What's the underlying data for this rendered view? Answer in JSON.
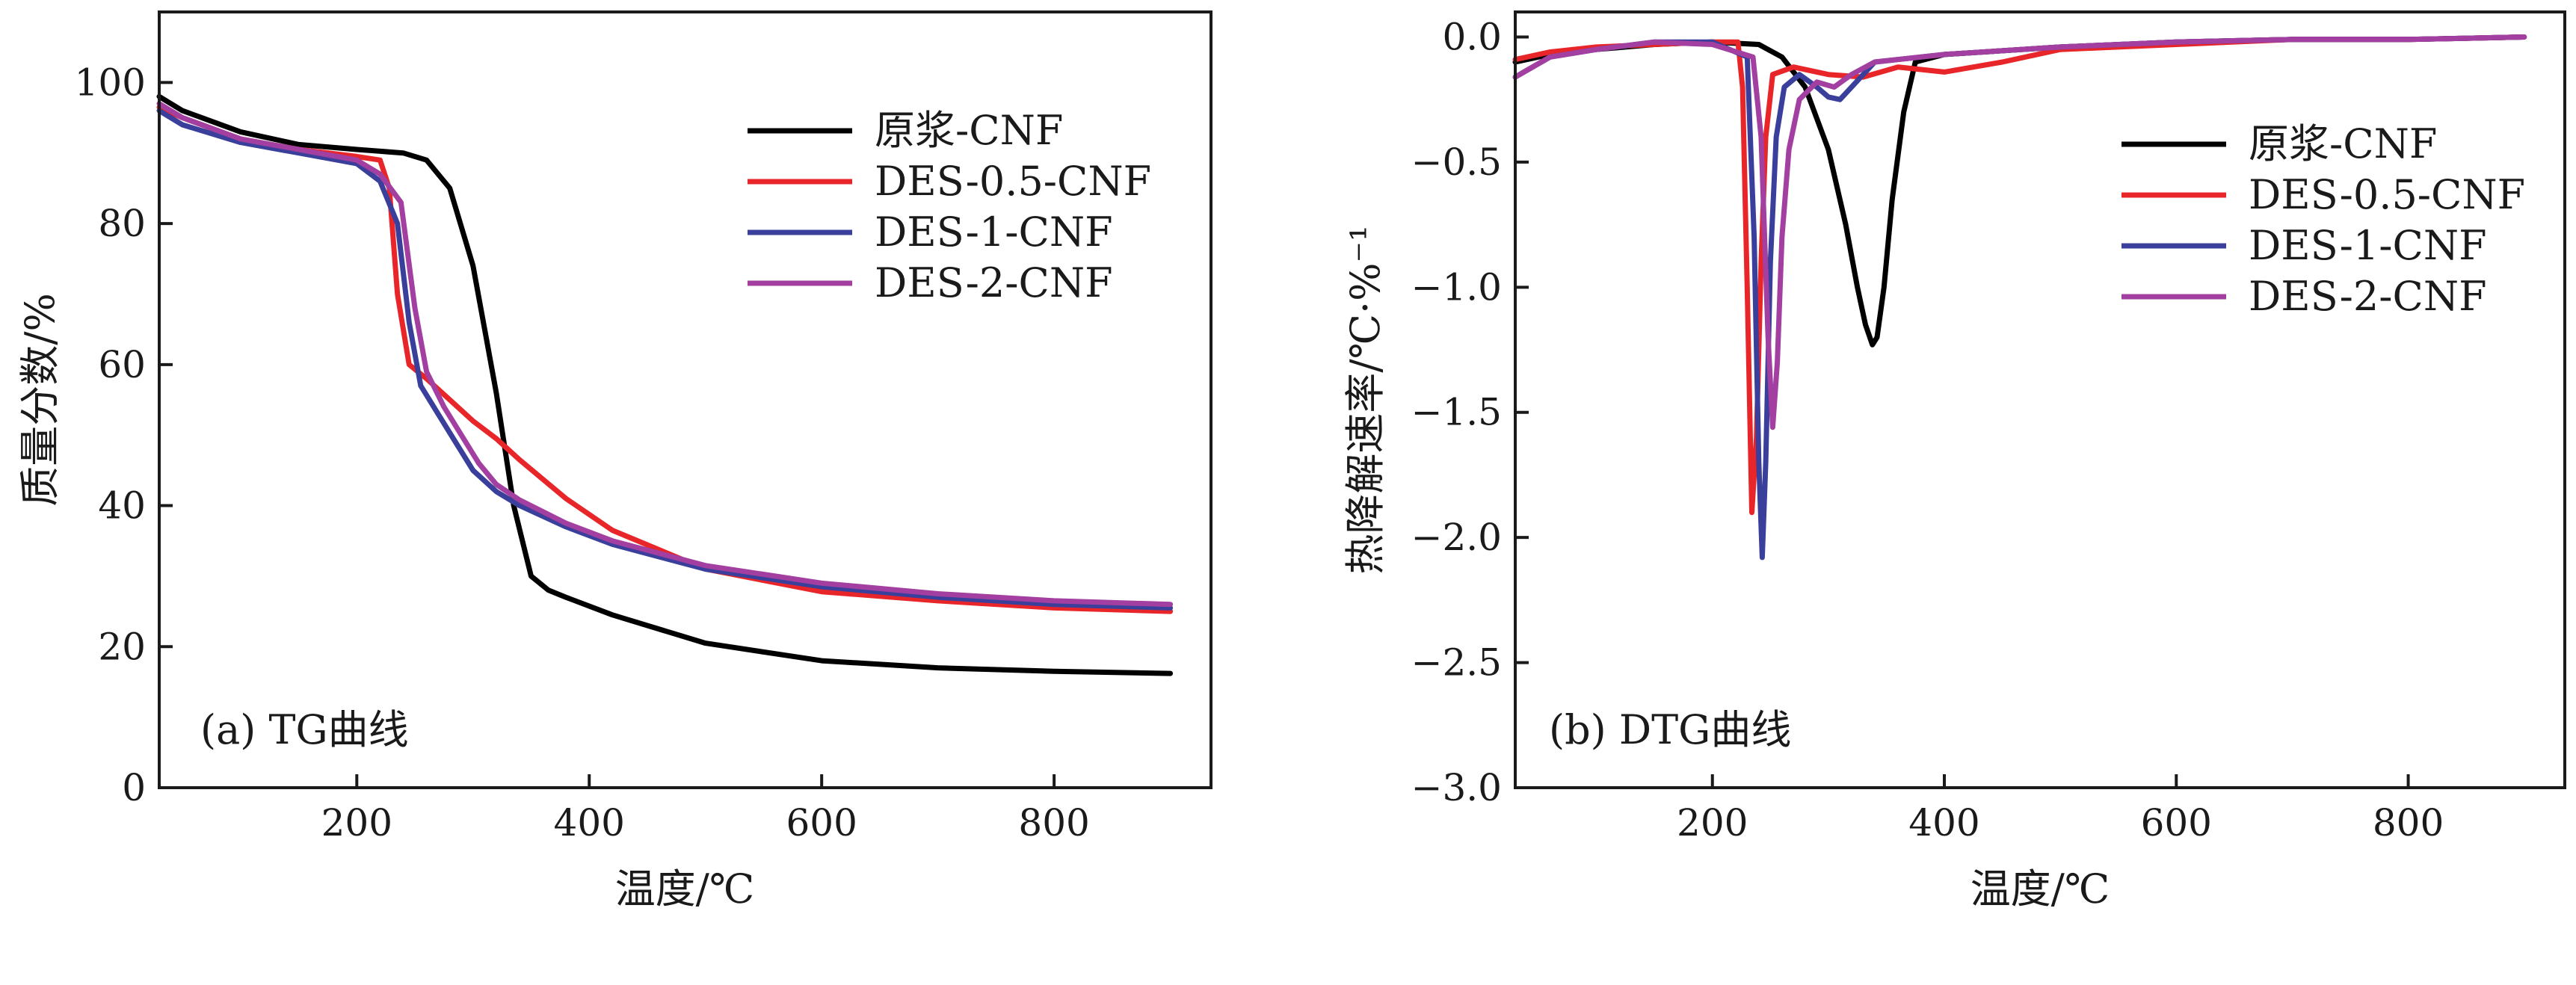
{
  "chart_data": [
    {
      "type": "line",
      "panel_label": "(a) TG曲线",
      "title": "",
      "xlabel": "温度/℃",
      "ylabel": "质量分数/%",
      "xlim": [
        30,
        935
      ],
      "ylim": [
        0,
        110
      ],
      "xticks": [
        200,
        400,
        600,
        800
      ],
      "yticks": [
        0,
        20,
        40,
        60,
        80,
        100
      ],
      "grid": false,
      "legend_position": "top-right",
      "series": [
        {
          "name": "原浆-CNF",
          "color": "#000000",
          "x": [
            30,
            50,
            100,
            150,
            200,
            240,
            260,
            280,
            300,
            320,
            335,
            350,
            365,
            380,
            420,
            500,
            600,
            700,
            800,
            900
          ],
          "y": [
            98,
            96,
            93,
            91.2,
            90.5,
            90,
            89,
            85,
            74,
            56,
            40,
            30,
            28,
            27,
            24.5,
            20.5,
            18,
            17,
            16.5,
            16.2
          ]
        },
        {
          "name": "DES-0.5-CNF",
          "color": "#e8262a",
          "x": [
            30,
            50,
            100,
            150,
            200,
            220,
            228,
            235,
            245,
            260,
            280,
            300,
            320,
            340,
            380,
            420,
            500,
            600,
            700,
            800,
            900
          ],
          "y": [
            96.5,
            95,
            92,
            90.5,
            89.5,
            89,
            85,
            70,
            60,
            58,
            55,
            52,
            49.5,
            46.5,
            41,
            36.5,
            31,
            27.8,
            26.5,
            25.5,
            25
          ]
        },
        {
          "name": "DES-1-CNF",
          "color": "#3a3f9c",
          "x": [
            30,
            50,
            100,
            150,
            200,
            220,
            235,
            245,
            255,
            270,
            285,
            300,
            320,
            340,
            380,
            420,
            500,
            600,
            700,
            800,
            900
          ],
          "y": [
            96,
            94,
            91.5,
            90,
            88.5,
            86,
            80,
            66,
            57,
            53,
            49,
            45,
            42,
            40,
            37,
            34.5,
            31,
            28.5,
            27,
            26,
            25.5
          ]
        },
        {
          "name": "DES-2-CNF",
          "color": "#a23fa0",
          "x": [
            30,
            50,
            100,
            150,
            200,
            220,
            238,
            250,
            260,
            275,
            290,
            305,
            320,
            340,
            380,
            420,
            500,
            600,
            700,
            800,
            900
          ],
          "y": [
            97,
            95,
            92,
            90.5,
            89,
            87,
            83,
            68,
            59,
            54,
            50,
            46,
            43,
            40.8,
            37.5,
            35,
            31.5,
            29,
            27.5,
            26.5,
            26
          ]
        }
      ]
    },
    {
      "type": "line",
      "panel_label": "(b) DTG曲线",
      "title": "",
      "xlabel": "温度/℃",
      "ylabel": "热降解速率/℃·%⁻¹",
      "xlim": [
        30,
        935
      ],
      "ylim": [
        -3.0,
        0.1
      ],
      "xticks": [
        200,
        400,
        600,
        800
      ],
      "yticks": [
        0.0,
        -0.5,
        -1.0,
        -1.5,
        -2.0,
        -2.5,
        -3.0
      ],
      "grid": false,
      "legend_position": "top-right",
      "series": [
        {
          "name": "原浆-CNF",
          "color": "#000000",
          "x": [
            30,
            60,
            100,
            150,
            200,
            240,
            260,
            280,
            300,
            315,
            325,
            332,
            338,
            342,
            348,
            355,
            365,
            375,
            400,
            500,
            600,
            700,
            800,
            900
          ],
          "y": [
            -0.1,
            -0.07,
            -0.05,
            -0.03,
            -0.02,
            -0.03,
            -0.08,
            -0.2,
            -0.45,
            -0.75,
            -1.0,
            -1.15,
            -1.23,
            -1.2,
            -1.0,
            -0.65,
            -0.3,
            -0.1,
            -0.07,
            -0.04,
            -0.02,
            -0.01,
            -0.01,
            0.0
          ]
        },
        {
          "name": "DES-0.5-CNF",
          "color": "#e8262a",
          "x": [
            30,
            60,
            100,
            150,
            200,
            222,
            226,
            230,
            234,
            238,
            242,
            246,
            252,
            270,
            300,
            330,
            360,
            400,
            450,
            500,
            600,
            700,
            800,
            900
          ],
          "y": [
            -0.09,
            -0.06,
            -0.04,
            -0.03,
            -0.02,
            -0.02,
            -0.2,
            -1.0,
            -1.9,
            -1.6,
            -0.9,
            -0.4,
            -0.15,
            -0.12,
            -0.15,
            -0.16,
            -0.12,
            -0.14,
            -0.1,
            -0.05,
            -0.03,
            -0.01,
            -0.01,
            0.0
          ]
        },
        {
          "name": "DES-1-CNF",
          "color": "#3a3f9c",
          "x": [
            30,
            60,
            100,
            150,
            200,
            230,
            236,
            240,
            243,
            246,
            250,
            255,
            262,
            275,
            290,
            300,
            310,
            320,
            340,
            400,
            500,
            600,
            700,
            800,
            900
          ],
          "y": [
            -0.16,
            -0.08,
            -0.05,
            -0.02,
            -0.02,
            -0.08,
            -0.8,
            -1.7,
            -2.08,
            -1.7,
            -0.9,
            -0.4,
            -0.2,
            -0.15,
            -0.2,
            -0.24,
            -0.25,
            -0.2,
            -0.1,
            -0.07,
            -0.04,
            -0.02,
            -0.01,
            -0.01,
            0.0
          ]
        },
        {
          "name": "DES-2-CNF",
          "color": "#a23fa0",
          "x": [
            30,
            60,
            100,
            150,
            200,
            235,
            242,
            248,
            252,
            256,
            260,
            266,
            275,
            290,
            305,
            320,
            340,
            400,
            500,
            600,
            700,
            800,
            900
          ],
          "y": [
            -0.16,
            -0.08,
            -0.05,
            -0.02,
            -0.03,
            -0.08,
            -0.4,
            -1.2,
            -1.56,
            -1.3,
            -0.8,
            -0.45,
            -0.25,
            -0.18,
            -0.2,
            -0.15,
            -0.1,
            -0.07,
            -0.04,
            -0.02,
            -0.01,
            -0.01,
            0.0
          ]
        }
      ]
    }
  ]
}
